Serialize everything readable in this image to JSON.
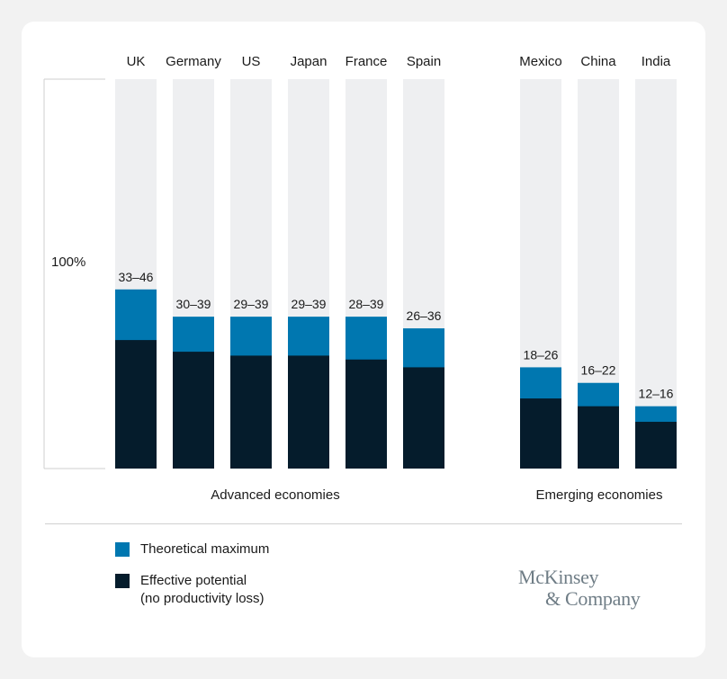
{
  "chart_data": {
    "type": "bar",
    "stacked": true,
    "ylim": [
      0,
      100
    ],
    "y_reference_label": "100%",
    "categories": [
      "UK",
      "Germany",
      "US",
      "Japan",
      "France",
      "Spain",
      "Mexico",
      "China",
      "India"
    ],
    "groups": [
      {
        "label": "Advanced economies",
        "categories": [
          "UK",
          "Germany",
          "US",
          "Japan",
          "France",
          "Spain"
        ]
      },
      {
        "label": "Emerging economies",
        "categories": [
          "Mexico",
          "China",
          "India"
        ]
      }
    ],
    "series": [
      {
        "name": "Effective potential\n(no productivity loss)",
        "values": [
          33,
          30,
          29,
          29,
          28,
          26,
          18,
          16,
          12
        ],
        "color": "#051c2c"
      },
      {
        "name": "Theoretical maximum",
        "values": [
          46,
          39,
          39,
          39,
          39,
          36,
          26,
          22,
          16
        ],
        "color": "#0077b0"
      }
    ],
    "data_labels": [
      "33–46",
      "30–39",
      "29–39",
      "29–39",
      "28–39",
      "26–36",
      "18–26",
      "16–22",
      "12–16"
    ],
    "background_color": "#eeeff1",
    "legend": {
      "placement": "bottom-left",
      "items": [
        {
          "label": "Theoretical maximum",
          "color": "#0077b0"
        },
        {
          "label_line1": "Effective potential",
          "label_line2": "(no productivity loss)",
          "color": "#051c2c"
        }
      ]
    }
  },
  "logo": {
    "line1": "McKinsey",
    "line2": "& Company"
  }
}
